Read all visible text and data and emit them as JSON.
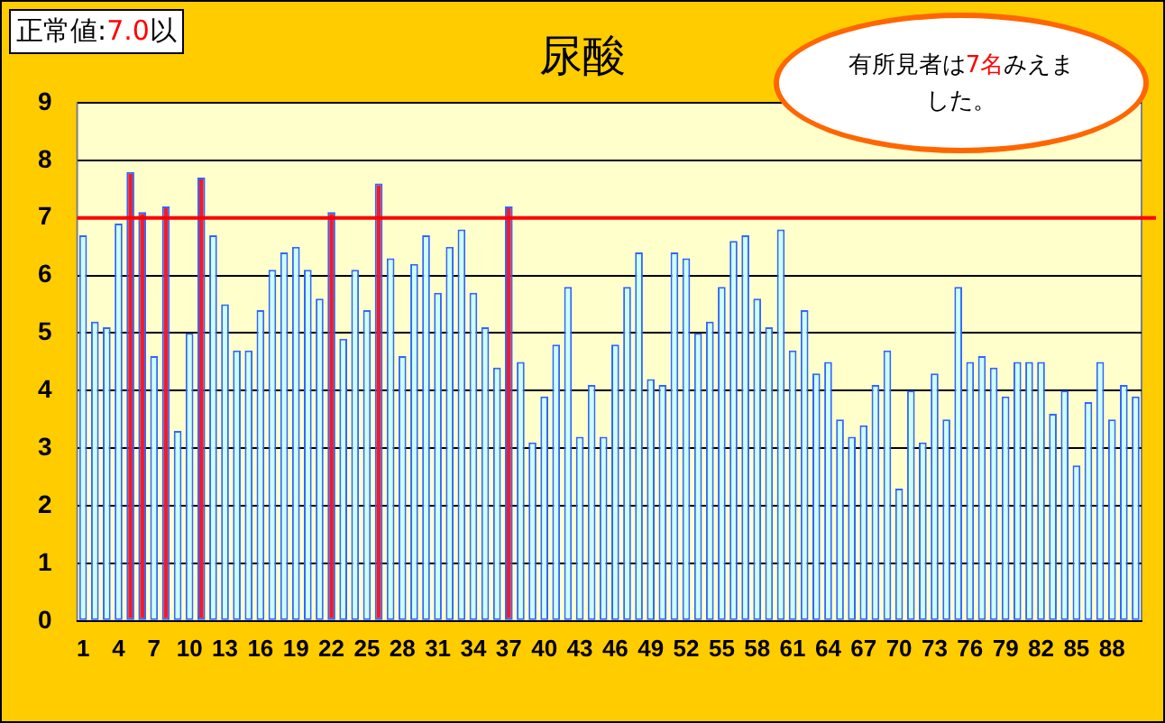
{
  "chart_data": {
    "type": "bar",
    "title": "尿酸",
    "categories": [
      "1",
      null,
      null,
      "4",
      null,
      null,
      "7",
      null,
      null,
      "10",
      null,
      null,
      "13",
      null,
      null,
      "16",
      null,
      null,
      "19",
      null,
      null,
      "22",
      null,
      null,
      "25",
      null,
      null,
      "28",
      null,
      null,
      "31",
      null,
      null,
      "34",
      null,
      null,
      "37",
      null,
      null,
      "40",
      null,
      null,
      "43",
      null,
      null,
      "46",
      null,
      null,
      "49",
      null,
      null,
      "52",
      null,
      null,
      "55",
      null,
      null,
      "58",
      null,
      null,
      "61",
      null,
      null,
      "64",
      null,
      null,
      "67",
      null,
      null,
      "70",
      null,
      null,
      "73",
      null,
      null,
      "76",
      null,
      null,
      "79",
      null,
      null,
      "82",
      null,
      null,
      "85",
      null,
      null,
      "88",
      null,
      null
    ],
    "values": [
      6.7,
      5.2,
      5.1,
      6.9,
      7.8,
      7.1,
      4.6,
      7.2,
      3.3,
      5.0,
      7.7,
      6.7,
      5.5,
      4.7,
      4.7,
      5.4,
      6.1,
      6.4,
      6.5,
      6.1,
      5.6,
      7.1,
      4.9,
      6.1,
      5.4,
      7.6,
      6.3,
      4.6,
      6.2,
      6.7,
      5.7,
      6.5,
      6.8,
      5.7,
      5.1,
      4.4,
      7.2,
      4.5,
      3.1,
      3.9,
      4.8,
      5.8,
      3.2,
      4.1,
      3.2,
      4.8,
      5.8,
      6.4,
      4.2,
      4.1,
      6.4,
      6.3,
      5.0,
      5.2,
      5.8,
      6.6,
      6.7,
      5.6,
      5.1,
      6.8,
      4.7,
      5.4,
      4.3,
      4.5,
      3.5,
      3.2,
      3.4,
      4.1,
      4.7,
      2.3,
      4.0,
      3.1,
      4.3,
      3.5,
      5.8,
      4.5,
      4.6,
      4.4,
      3.9,
      4.5,
      4.5,
      4.5,
      3.6,
      4.0,
      2.7,
      3.8,
      4.5,
      3.5,
      4.1,
      3.9
    ],
    "colors": [
      "#ccffff",
      "#ccffff",
      "#ccffff",
      "#ccffff",
      "#ee1c2c",
      "#ee1c2c",
      "#ccffff",
      "#ee1c2c",
      "#ccffff",
      "#ccffff",
      "#ee1c2c",
      "#ccffff",
      "#ccffff",
      "#ccffff",
      "#ccffff",
      "#ccffff",
      "#ccffff",
      "#ccffff",
      "#ccffff",
      "#ccffff",
      "#ccffff",
      "#ee1c2c",
      "#ccffff",
      "#ccffff",
      "#ccffff",
      "#ee1c2c",
      "#ccffff",
      "#ccffff",
      "#ccffff",
      "#ccffff",
      "#ccffff",
      "#ccffff",
      "#ccffff",
      "#ccffff",
      "#ccffff",
      "#ccffff",
      "#ee1c2c",
      "#ccffff",
      "#ccffff",
      "#ccffff",
      "#ccffff",
      "#ccffff",
      "#ccffff",
      "#ccffff",
      "#ccffff",
      "#ccffff",
      "#ccffff",
      "#ccffff",
      "#ccffff",
      "#ccffff",
      "#ccffff",
      "#ccffff",
      "#ccffff",
      "#ccffff",
      "#ccffff",
      "#ccffff",
      "#ccffff",
      "#ccffff",
      "#ccffff",
      "#ccffff",
      "#ccffff",
      "#ccffff",
      "#ccffff",
      "#ccffff",
      "#ccffff",
      "#ccffff",
      "#ccffff",
      "#ccffff",
      "#ccffff",
      "#ccffff",
      "#ccffff",
      "#ccffff",
      "#ccffff",
      "#ccffff",
      "#ccffff",
      "#ccffff",
      "#ccffff",
      "#ccffff",
      "#ccffff",
      "#ccffff",
      "#ccffff",
      "#ccffff",
      "#ccffff",
      "#ccffff",
      "#ccffff",
      "#ccffff",
      "#ccffff",
      "#ccffff",
      "#ccffff",
      "#ccffff"
    ],
    "ylim": [
      0,
      9
    ],
    "yticks": [
      0,
      1,
      2,
      3,
      4,
      5,
      6,
      7,
      8,
      9
    ],
    "grid": "y",
    "legend": false,
    "ref_lines": [
      {
        "axis": "y",
        "value": 7,
        "color": "#ff0000"
      }
    ],
    "annotations": [
      "正常値:7.0以",
      "有所見者は7名みえました。"
    ]
  }
}
